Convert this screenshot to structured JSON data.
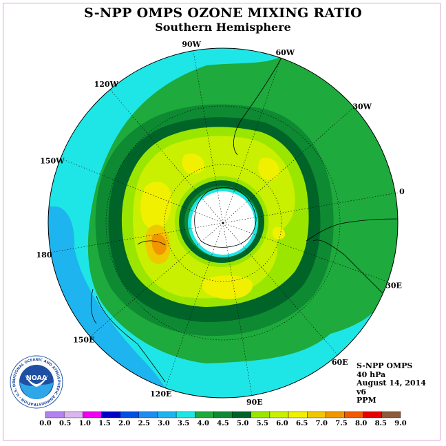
{
  "title": "S-NPP OMPS OZONE MIXING RATIO",
  "subtitle": "Southern Hemisphere",
  "longitude_labels": [
    {
      "text": "90W",
      "lon": -90
    },
    {
      "text": "60W",
      "lon": -60
    },
    {
      "text": "120W",
      "lon": -120
    },
    {
      "text": "30W",
      "lon": -30
    },
    {
      "text": "150W",
      "lon": -150
    },
    {
      "text": "0",
      "lon": 0
    },
    {
      "text": "180",
      "lon": 180
    },
    {
      "text": "30E",
      "lon": 30
    },
    {
      "text": "150E",
      "lon": 150
    },
    {
      "text": "60E",
      "lon": 60
    },
    {
      "text": "120E",
      "lon": 120
    },
    {
      "text": "90E",
      "lon": 90
    }
  ],
  "info": {
    "instrument": "S-NPP OMPS",
    "level": "40 hPa",
    "date": "August 14, 2014",
    "version": "v6",
    "units": "PPM"
  },
  "logo": {
    "text": "NOAA",
    "ring_text": "NATIONAL OCEANIC AND ATMOSPHERIC ADMINISTRATION · U.S. DEPARTMENT OF COMMERCE"
  },
  "colorbar": {
    "ticks": [
      "0.0",
      "0.5",
      "1.0",
      "1.5",
      "2.0",
      "2.5",
      "3.0",
      "3.5",
      "4.0",
      "4.5",
      "5.0",
      "5.5",
      "6.0",
      "6.5",
      "7.0",
      "7.5",
      "8.0",
      "8.5",
      "9.0"
    ],
    "colors": [
      "#b482f0",
      "#dcb4f0",
      "#f000f0",
      "#0000c8",
      "#0050e6",
      "#1e8cf0",
      "#1eb4f0",
      "#1ee6e6",
      "#1eaa3c",
      "#0e8a32",
      "#006428",
      "#9ae600",
      "#c8f000",
      "#f0f000",
      "#f0c800",
      "#f09600",
      "#f05a00",
      "#e60000",
      "#8c5a3c"
    ]
  }
}
